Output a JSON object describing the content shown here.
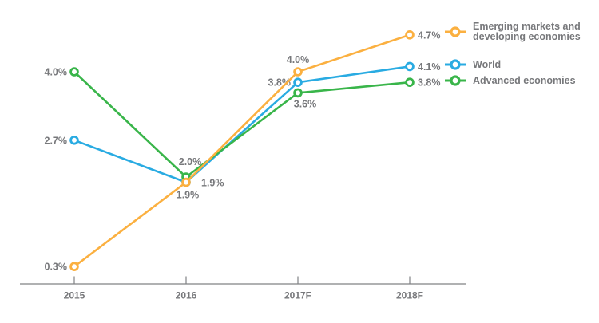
{
  "chart_data": {
    "type": "line",
    "title": "",
    "xlabel": "",
    "ylabel": "",
    "categories": [
      "2015",
      "2016",
      "2017F",
      "2018F"
    ],
    "ylim": [
      0,
      5.3
    ],
    "grid": false,
    "legend_position": "right",
    "axis_color": "#808285",
    "label_color": "#77787b",
    "series": [
      {
        "name": "World",
        "values": [
          2.7,
          1.9,
          3.8,
          4.1
        ],
        "labels": [
          "2.7%",
          "1.9%",
          "3.8%",
          "4.1%"
        ],
        "color": "#29abe2",
        "label_positions": [
          "left",
          "right-far",
          "left",
          "right"
        ]
      },
      {
        "name": "Advanced economies",
        "values": [
          4.0,
          2.0,
          3.6,
          3.8
        ],
        "labels": [
          "4.0%",
          "2.0%",
          "3.6%",
          "3.8%"
        ],
        "color": "#39b54a",
        "label_positions": [
          "left",
          "above-right",
          "below-right",
          "right"
        ]
      },
      {
        "name": "Emerging markets and developing economies",
        "values": [
          0.3,
          1.9,
          4.0,
          4.7
        ],
        "labels": [
          "0.3%",
          "1.9%",
          "4.0%",
          "4.7%"
        ],
        "color": "#fbb040",
        "label_positions": [
          "left",
          "below",
          "above",
          "right"
        ]
      }
    ],
    "legend_order": [
      2,
      0,
      1
    ]
  }
}
